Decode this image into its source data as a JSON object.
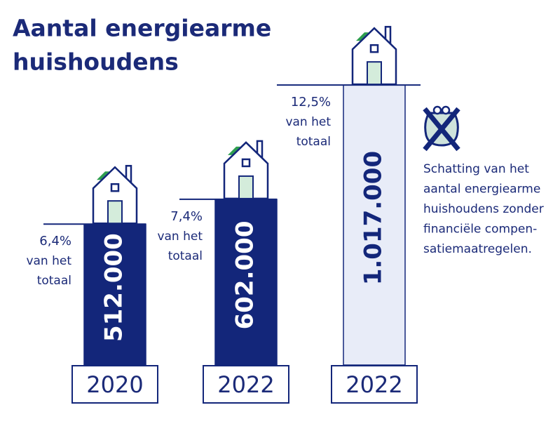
{
  "chart_data": {
    "type": "bar",
    "title": [
      "Aantal energiearme",
      "huishoudens"
    ],
    "categories": [
      "2020",
      "2022",
      "2022"
    ],
    "values": [
      512000,
      602000,
      1017000
    ],
    "value_labels": [
      "512.000",
      "602.000",
      "1.017.000"
    ],
    "colors": [
      "#13267a",
      "#13267a",
      "#e8ecf8"
    ],
    "share_labels": [
      "6,4%",
      "7,4%",
      "12,5%"
    ],
    "share_note": [
      "van het",
      "totaal"
    ],
    "note": [
      "Schatting van het",
      "aantal energiearme",
      "huishoudens zonder",
      "financiële compen-",
      "satiemaatregelen."
    ]
  }
}
